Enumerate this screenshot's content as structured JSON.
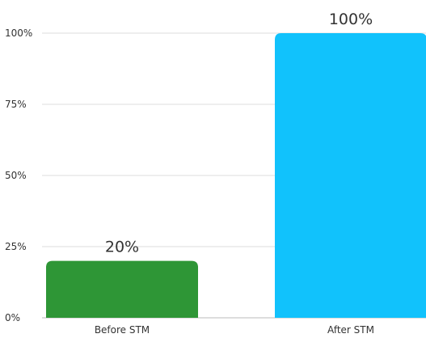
{
  "chart_data": {
    "type": "bar",
    "title": "",
    "xlabel": "",
    "ylabel": "",
    "categories": [
      "Before STM",
      "After STM"
    ],
    "values": [
      20,
      100
    ],
    "value_labels": [
      "20%",
      "100%"
    ],
    "ylim": [
      0,
      100
    ],
    "y_ticks": [
      0,
      25,
      50,
      75,
      100
    ],
    "y_tick_labels": [
      "0%",
      "25%",
      "50%",
      "75%",
      "100%"
    ],
    "grid": true,
    "legend": "none",
    "bar_colors": [
      "#2e9636",
      "#11c2fc"
    ]
  }
}
